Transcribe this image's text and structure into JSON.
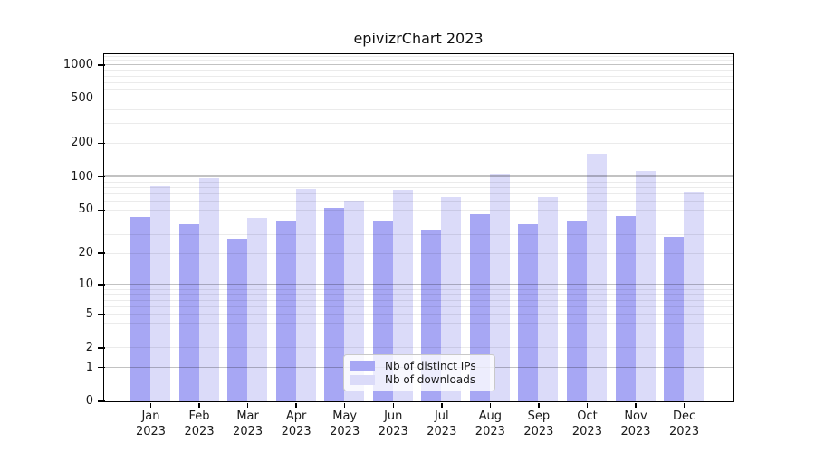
{
  "figure": {
    "title": "epivizrChart 2023"
  },
  "chart_data": {
    "type": "bar",
    "title": "epivizrChart 2023",
    "categories": [
      "Jan",
      "Feb",
      "Mar",
      "Apr",
      "May",
      "Jun",
      "Jul",
      "Aug",
      "Sep",
      "Oct",
      "Nov",
      "Dec"
    ],
    "category_year": "2023",
    "series": [
      {
        "name": "Nb of distinct IPs",
        "color": "#a7a7f4",
        "values": [
          43,
          37,
          27,
          39,
          52,
          39,
          33,
          45,
          37,
          39,
          44,
          28
        ]
      },
      {
        "name": "Nb of downloads",
        "color": "#dbdbf9",
        "values": [
          81,
          96,
          42,
          77,
          60,
          75,
          65,
          103,
          65,
          160,
          111,
          72
        ]
      }
    ],
    "yscale": "log1p",
    "yticks": [
      0,
      1,
      2,
      5,
      10,
      20,
      50,
      100,
      200,
      500,
      1000
    ],
    "ylim": [
      0,
      1250
    ],
    "grid": true,
    "legend_position": "lower center inside",
    "axis_color": "#000000",
    "major_grid_color": "#c3c3c3",
    "minor_grid_color": "#ececec"
  }
}
